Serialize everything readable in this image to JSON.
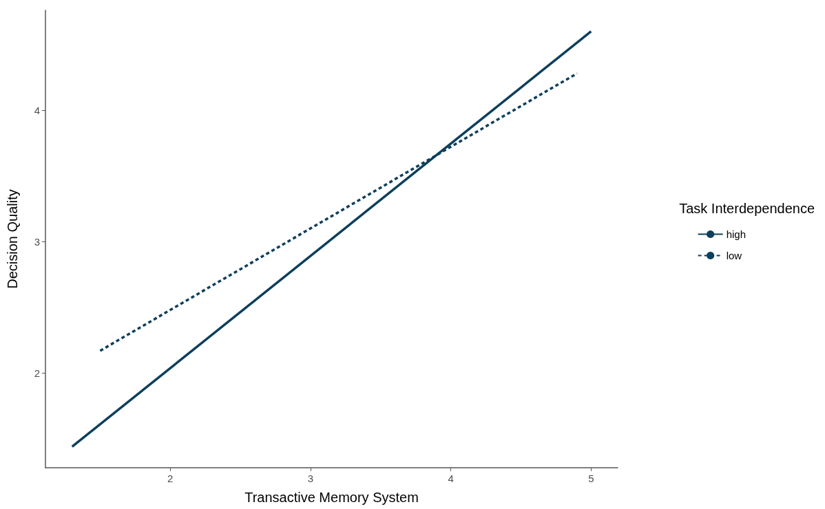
{
  "chart_data": {
    "type": "line",
    "xlabel": "Transactive Memory System",
    "ylabel": "Decision Quality",
    "legend_title": "Task Interdependence",
    "xlim": [
      1.11,
      5.19
    ],
    "xticks": [
      2,
      3,
      4,
      5
    ],
    "ylim": [
      1.28,
      4.76
    ],
    "yticks": [
      2,
      3,
      4
    ],
    "grid": false,
    "legend": "right",
    "marker": "none",
    "series": [
      {
        "name": "high",
        "color": "#0d3f5c",
        "line_style": "solid",
        "x": [
          1.3,
          5
        ],
        "values": [
          1.44,
          4.6
        ]
      },
      {
        "name": "low",
        "color": "#0d3f5c",
        "line_style": "dashed",
        "x": [
          1.5,
          4.9
        ],
        "values": [
          2.17,
          4.28
        ]
      }
    ]
  }
}
